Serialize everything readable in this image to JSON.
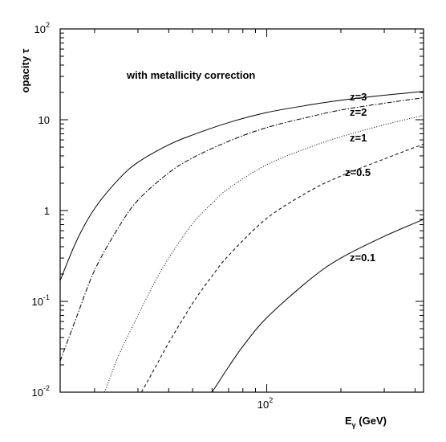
{
  "chart_data": {
    "type": "line",
    "title": "",
    "xlabel": "E_γ (GeV)",
    "ylabel": "opacity τ",
    "xscale": "log",
    "yscale": "log",
    "xlim": [
      14.5,
      433
    ],
    "ylim": [
      0.01,
      100
    ],
    "annotation": "with metallicity correction",
    "x_ticks": [
      {
        "base": "10",
        "exp": "2",
        "value": 100
      }
    ],
    "y_ticks": [
      {
        "base": "10",
        "exp": "2",
        "value": 100
      },
      {
        "base": "10",
        "exp": "",
        "value": 10
      },
      {
        "base": "1",
        "exp": "",
        "value": 1
      },
      {
        "base": "10",
        "exp": "-1",
        "value": 0.1
      },
      {
        "base": "10",
        "exp": "-2",
        "value": 0.01
      }
    ],
    "series": [
      {
        "name": "z=3",
        "dash": "",
        "points": [
          [
            14.5,
            0.17
          ],
          [
            17,
            0.48
          ],
          [
            20,
            1.05
          ],
          [
            25,
            2.2
          ],
          [
            30,
            3.4
          ],
          [
            40,
            5.3
          ],
          [
            50,
            6.8
          ],
          [
            70,
            9.3
          ],
          [
            100,
            12
          ],
          [
            150,
            14.6
          ],
          [
            200,
            16.4
          ],
          [
            300,
            18.6
          ],
          [
            433,
            20.5
          ]
        ]
      },
      {
        "name": "z=2",
        "dash": "6,2,1.5,2",
        "points": [
          [
            14.5,
            0.022
          ],
          [
            17,
            0.07
          ],
          [
            20,
            0.22
          ],
          [
            25,
            0.65
          ],
          [
            30,
            1.3
          ],
          [
            40,
            2.6
          ],
          [
            50,
            3.8
          ],
          [
            70,
            5.8
          ],
          [
            100,
            8.2
          ],
          [
            150,
            10.8
          ],
          [
            200,
            12.8
          ],
          [
            300,
            15.2
          ],
          [
            433,
            17.5
          ]
        ]
      },
      {
        "name": "z=1",
        "dash": "1,2",
        "points": [
          [
            22,
            0.01
          ],
          [
            25,
            0.025
          ],
          [
            30,
            0.07
          ],
          [
            35,
            0.16
          ],
          [
            40,
            0.3
          ],
          [
            50,
            0.72
          ],
          [
            60,
            1.2
          ],
          [
            70,
            1.75
          ],
          [
            100,
            3.2
          ],
          [
            150,
            5.0
          ],
          [
            200,
            6.5
          ],
          [
            300,
            8.8
          ],
          [
            433,
            11.2
          ]
        ]
      },
      {
        "name": "z=0.5",
        "dash": "4,3",
        "points": [
          [
            31,
            0.01
          ],
          [
            35,
            0.018
          ],
          [
            40,
            0.035
          ],
          [
            50,
            0.095
          ],
          [
            60,
            0.19
          ],
          [
            70,
            0.32
          ],
          [
            100,
            0.82
          ],
          [
            150,
            1.65
          ],
          [
            200,
            2.4
          ],
          [
            300,
            3.7
          ],
          [
            433,
            5.4
          ]
        ]
      },
      {
        "name": "z=0.1",
        "dash": "",
        "points": [
          [
            60,
            0.01
          ],
          [
            65,
            0.014
          ],
          [
            70,
            0.019
          ],
          [
            80,
            0.032
          ],
          [
            100,
            0.066
          ],
          [
            150,
            0.175
          ],
          [
            200,
            0.3
          ],
          [
            300,
            0.52
          ],
          [
            433,
            0.8
          ]
        ]
      }
    ]
  }
}
